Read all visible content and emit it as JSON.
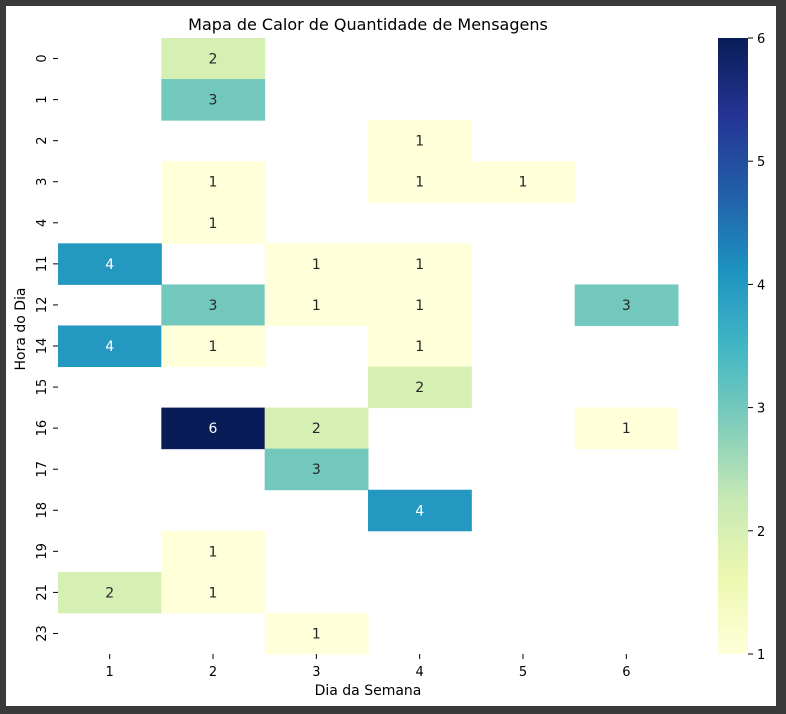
{
  "chart_data": {
    "type": "heatmap",
    "title": "Mapa de Calor de Quantidade de Mensagens",
    "xlabel": "Dia da Semana",
    "ylabel": "Hora do Dia",
    "x": [
      "1",
      "2",
      "3",
      "4",
      "5",
      "6"
    ],
    "y": [
      "0",
      "1",
      "2",
      "3",
      "4",
      "11",
      "12",
      "14",
      "15",
      "16",
      "17",
      "18",
      "19",
      "21",
      "23"
    ],
    "values": [
      [
        null,
        2,
        null,
        null,
        null,
        null
      ],
      [
        null,
        3,
        null,
        null,
        null,
        null
      ],
      [
        null,
        null,
        null,
        1,
        null,
        null
      ],
      [
        null,
        1,
        null,
        1,
        1,
        null
      ],
      [
        null,
        1,
        null,
        null,
        null,
        null
      ],
      [
        4,
        null,
        1,
        1,
        null,
        null
      ],
      [
        null,
        3,
        1,
        1,
        null,
        3
      ],
      [
        4,
        1,
        null,
        1,
        null,
        null
      ],
      [
        null,
        null,
        null,
        2,
        null,
        null
      ],
      [
        null,
        6,
        2,
        null,
        null,
        1
      ],
      [
        null,
        null,
        3,
        null,
        null,
        null
      ],
      [
        null,
        null,
        null,
        4,
        null,
        null
      ],
      [
        null,
        1,
        null,
        null,
        null,
        null
      ],
      [
        2,
        1,
        null,
        null,
        null,
        null
      ],
      [
        null,
        null,
        1,
        null,
        null,
        null
      ]
    ],
    "colorbar": {
      "min": 1,
      "max": 6,
      "ticks": [
        "1",
        "2",
        "3",
        "4",
        "5",
        "6"
      ],
      "colormap": "YlGnBu"
    },
    "grid": false,
    "legend": "colorbar-right"
  }
}
